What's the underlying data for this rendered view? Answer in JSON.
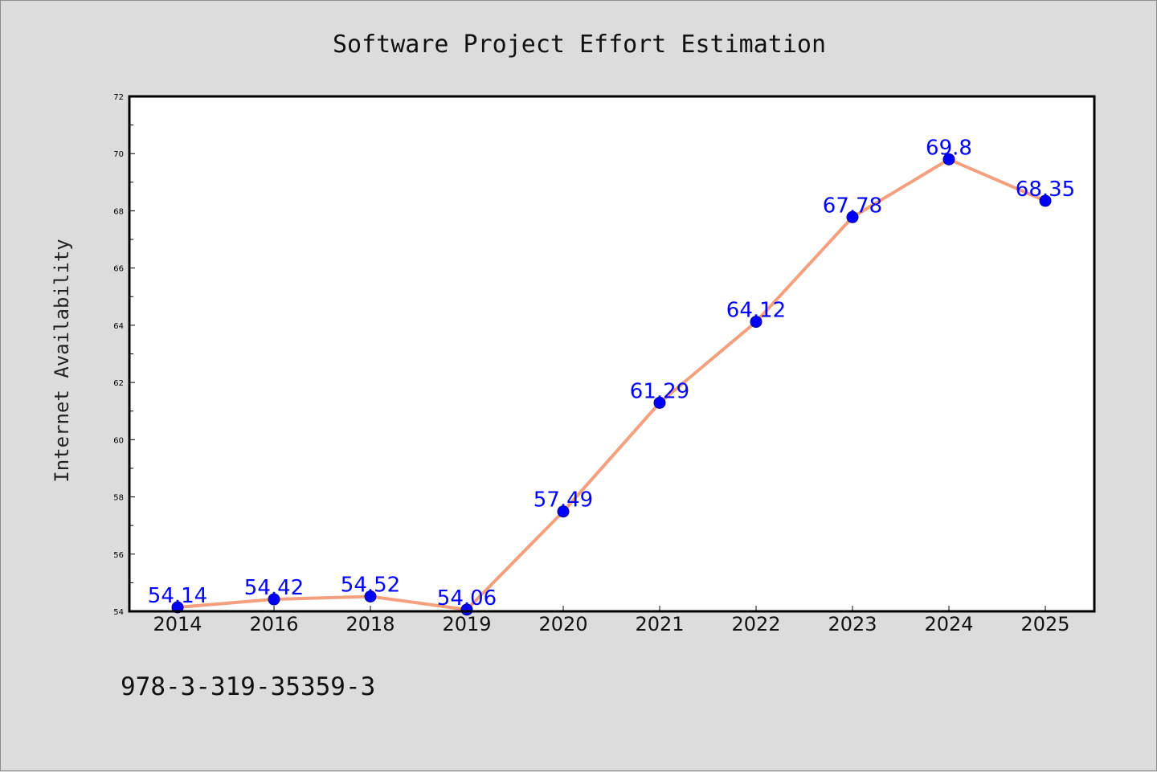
{
  "chart_data": {
    "type": "line",
    "title": "Software Project Effort Estimation",
    "xlabel": "",
    "ylabel": "Internet Availability",
    "categories": [
      "2014",
      "2016",
      "2018",
      "2019",
      "2020",
      "2021",
      "2022",
      "2023",
      "2024",
      "2025"
    ],
    "series": [
      {
        "values": [
          54.14,
          54.42,
          54.52,
          54.06,
          57.49,
          61.29,
          64.12,
          67.78,
          69.8,
          68.35
        ],
        "labels": [
          "54.14",
          "54.42",
          "54.52",
          "54.06",
          "57.49",
          "61.29",
          "64.12",
          "67.78",
          "69.8",
          "68.35"
        ]
      }
    ],
    "ylim": [
      54,
      72
    ],
    "yticks": [
      "54",
      "56",
      "58",
      "60",
      "62",
      "64",
      "66",
      "68",
      "70",
      "72"
    ],
    "grid": false,
    "legend": "none",
    "colors": {
      "line": "#f4a07e",
      "marker": "#0000ff",
      "marker_edge": "#00008b",
      "data_label": "#0000ff",
      "background": "#dcdcdc",
      "plot_area": "#ffffff"
    }
  },
  "footer": {
    "text": "978-3-319-35359-3"
  }
}
